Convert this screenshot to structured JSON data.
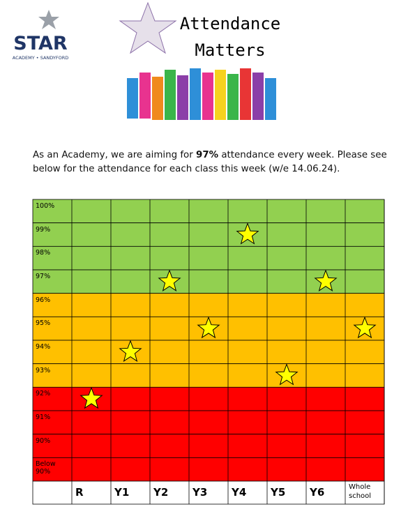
{
  "header": {
    "logo": {
      "name": "STAR",
      "subtitle": "ACADEMY • SANDYFORD"
    },
    "title_lines": [
      "Attendance",
      "Matters"
    ]
  },
  "intro": {
    "before": "As an Academy, we are aiming for ",
    "bold": "97%",
    "after": " attendance every week. Please see below for the attendance for each class this week (w/e 14.06.24)."
  },
  "chart_data": {
    "type": "star-grid",
    "categories": [
      "R",
      "Y1",
      "Y2",
      "Y3",
      "Y4",
      "Y5",
      "Y6",
      "Whole school"
    ],
    "values": [
      92,
      94,
      97,
      95,
      99,
      93,
      97,
      95
    ],
    "color": "#ffff00",
    "ylim": [
      88.5,
      100.5
    ],
    "yticks": [
      {
        "value": 100,
        "label": "100%"
      },
      {
        "value": 99,
        "label": "99%"
      },
      {
        "value": 98,
        "label": "98%"
      },
      {
        "value": 97,
        "label": "97%"
      },
      {
        "value": 96,
        "label": "96%"
      },
      {
        "value": 95,
        "label": "95%"
      },
      {
        "value": 94,
        "label": "94%"
      },
      {
        "value": 93,
        "label": "93%"
      },
      {
        "value": 92,
        "label": "92%"
      },
      {
        "value": 91,
        "label": "91%"
      },
      {
        "value": 90,
        "label": "90%"
      },
      {
        "value": 89,
        "label": "Below 90%"
      }
    ],
    "row_colors": [
      "#92d050",
      "#92d050",
      "#92d050",
      "#92d050",
      "#ffc000",
      "#ffc000",
      "#ffc000",
      "#ffc000",
      "#ff0000",
      "#ff0000",
      "#ff0000",
      "#ff0000"
    ]
  }
}
